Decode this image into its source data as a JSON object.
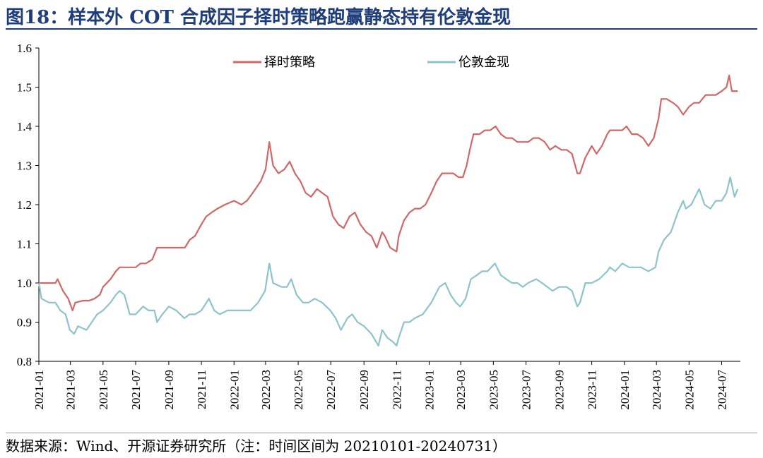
{
  "title": "图18：样本外 COT 合成因子择时策略跑赢静态持有伦敦金现",
  "source": "数据来源：Wind、开源证券研究所（注：时间区间为 20210101-20240731）",
  "chart_data": {
    "type": "line",
    "xlabel": "",
    "ylabel": "",
    "ylim": [
      0.8,
      1.6
    ],
    "yticks": [
      "0.8",
      "0.9",
      "1.0",
      "1.1",
      "1.2",
      "1.3",
      "1.4",
      "1.5",
      "1.6"
    ],
    "xticks": [
      "2021-01",
      "2021-03",
      "2021-05",
      "2021-07",
      "2021-09",
      "2021-11",
      "2022-01",
      "2022-03",
      "2022-05",
      "2022-07",
      "2022-09",
      "2022-11",
      "2023-01",
      "2023-03",
      "2023-05",
      "2023-07",
      "2023-09",
      "2023-11",
      "2024-01",
      "2024-03",
      "2024-05",
      "2024-07"
    ],
    "legend_position": "top-center",
    "grid": false,
    "series": [
      {
        "name": "择时策略",
        "color": "#d06868",
        "points": [
          [
            "2021-01-01",
            1.0
          ],
          [
            "2021-01-20",
            1.0
          ],
          [
            "2021-02-01",
            1.0
          ],
          [
            "2021-02-05",
            1.01
          ],
          [
            "2021-02-15",
            0.98
          ],
          [
            "2021-02-25",
            0.96
          ],
          [
            "2021-03-05",
            0.93
          ],
          [
            "2021-03-10",
            0.95
          ],
          [
            "2021-03-25",
            0.955
          ],
          [
            "2021-04-05",
            0.955
          ],
          [
            "2021-04-15",
            0.96
          ],
          [
            "2021-04-25",
            0.97
          ],
          [
            "2021-05-01",
            0.99
          ],
          [
            "2021-05-15",
            1.01
          ],
          [
            "2021-05-25",
            1.03
          ],
          [
            "2021-06-01",
            1.04
          ],
          [
            "2021-06-15",
            1.04
          ],
          [
            "2021-07-01",
            1.04
          ],
          [
            "2021-07-10",
            1.05
          ],
          [
            "2021-07-20",
            1.05
          ],
          [
            "2021-08-01",
            1.06
          ],
          [
            "2021-08-10",
            1.09
          ],
          [
            "2021-09-01",
            1.09
          ],
          [
            "2021-09-20",
            1.09
          ],
          [
            "2021-10-01",
            1.09
          ],
          [
            "2021-10-10",
            1.11
          ],
          [
            "2021-10-20",
            1.12
          ],
          [
            "2021-11-01",
            1.15
          ],
          [
            "2021-11-10",
            1.17
          ],
          [
            "2021-11-20",
            1.18
          ],
          [
            "2021-12-01",
            1.19
          ],
          [
            "2021-12-15",
            1.2
          ],
          [
            "2022-01-01",
            1.21
          ],
          [
            "2022-01-15",
            1.2
          ],
          [
            "2022-01-25",
            1.21
          ],
          [
            "2022-02-05",
            1.23
          ],
          [
            "2022-02-20",
            1.26
          ],
          [
            "2022-03-01",
            1.29
          ],
          [
            "2022-03-08",
            1.36
          ],
          [
            "2022-03-15",
            1.3
          ],
          [
            "2022-03-25",
            1.28
          ],
          [
            "2022-04-05",
            1.29
          ],
          [
            "2022-04-15",
            1.31
          ],
          [
            "2022-04-25",
            1.28
          ],
          [
            "2022-05-05",
            1.26
          ],
          [
            "2022-05-15",
            1.23
          ],
          [
            "2022-05-25",
            1.22
          ],
          [
            "2022-06-05",
            1.24
          ],
          [
            "2022-06-15",
            1.23
          ],
          [
            "2022-06-25",
            1.22
          ],
          [
            "2022-07-05",
            1.17
          ],
          [
            "2022-07-15",
            1.15
          ],
          [
            "2022-07-25",
            1.14
          ],
          [
            "2022-08-05",
            1.17
          ],
          [
            "2022-08-15",
            1.18
          ],
          [
            "2022-08-25",
            1.15
          ],
          [
            "2022-09-05",
            1.13
          ],
          [
            "2022-09-15",
            1.12
          ],
          [
            "2022-09-25",
            1.09
          ],
          [
            "2022-10-05",
            1.13
          ],
          [
            "2022-10-10",
            1.12
          ],
          [
            "2022-10-20",
            1.09
          ],
          [
            "2022-11-01",
            1.08
          ],
          [
            "2022-11-05",
            1.12
          ],
          [
            "2022-11-15",
            1.16
          ],
          [
            "2022-11-25",
            1.18
          ],
          [
            "2022-12-05",
            1.19
          ],
          [
            "2022-12-15",
            1.19
          ],
          [
            "2022-12-25",
            1.2
          ],
          [
            "2023-01-05",
            1.23
          ],
          [
            "2023-01-15",
            1.26
          ],
          [
            "2023-01-25",
            1.28
          ],
          [
            "2023-02-05",
            1.28
          ],
          [
            "2023-02-15",
            1.28
          ],
          [
            "2023-02-25",
            1.27
          ],
          [
            "2023-03-05",
            1.27
          ],
          [
            "2023-03-12",
            1.3
          ],
          [
            "2023-03-18",
            1.34
          ],
          [
            "2023-03-25",
            1.38
          ],
          [
            "2023-04-05",
            1.38
          ],
          [
            "2023-04-15",
            1.39
          ],
          [
            "2023-04-25",
            1.39
          ],
          [
            "2023-05-05",
            1.4
          ],
          [
            "2023-05-15",
            1.38
          ],
          [
            "2023-05-25",
            1.37
          ],
          [
            "2023-06-05",
            1.37
          ],
          [
            "2023-06-15",
            1.36
          ],
          [
            "2023-06-25",
            1.36
          ],
          [
            "2023-07-05",
            1.36
          ],
          [
            "2023-07-15",
            1.37
          ],
          [
            "2023-07-25",
            1.37
          ],
          [
            "2023-08-05",
            1.36
          ],
          [
            "2023-08-15",
            1.34
          ],
          [
            "2023-08-25",
            1.35
          ],
          [
            "2023-09-05",
            1.34
          ],
          [
            "2023-09-15",
            1.34
          ],
          [
            "2023-09-25",
            1.33
          ],
          [
            "2023-10-05",
            1.28
          ],
          [
            "2023-10-10",
            1.28
          ],
          [
            "2023-10-20",
            1.32
          ],
          [
            "2023-11-01",
            1.35
          ],
          [
            "2023-11-10",
            1.33
          ],
          [
            "2023-11-20",
            1.35
          ],
          [
            "2023-11-30",
            1.38
          ],
          [
            "2023-12-05",
            1.39
          ],
          [
            "2023-12-15",
            1.39
          ],
          [
            "2023-12-28",
            1.39
          ],
          [
            "2024-01-05",
            1.4
          ],
          [
            "2024-01-15",
            1.38
          ],
          [
            "2024-01-25",
            1.38
          ],
          [
            "2024-02-05",
            1.37
          ],
          [
            "2024-02-15",
            1.35
          ],
          [
            "2024-02-25",
            1.37
          ],
          [
            "2024-03-05",
            1.42
          ],
          [
            "2024-03-10",
            1.47
          ],
          [
            "2024-03-20",
            1.47
          ],
          [
            "2024-04-01",
            1.46
          ],
          [
            "2024-04-10",
            1.45
          ],
          [
            "2024-04-20",
            1.43
          ],
          [
            "2024-05-01",
            1.45
          ],
          [
            "2024-05-10",
            1.46
          ],
          [
            "2024-05-20",
            1.46
          ],
          [
            "2024-06-01",
            1.48
          ],
          [
            "2024-06-10",
            1.48
          ],
          [
            "2024-06-20",
            1.48
          ],
          [
            "2024-07-01",
            1.49
          ],
          [
            "2024-07-10",
            1.5
          ],
          [
            "2024-07-15",
            1.53
          ],
          [
            "2024-07-20",
            1.49
          ],
          [
            "2024-07-31",
            1.49
          ]
        ]
      },
      {
        "name": "伦敦金现",
        "color": "#8fc3cc",
        "points": [
          [
            "2021-01-01",
            1.0
          ],
          [
            "2021-01-06",
            0.96
          ],
          [
            "2021-01-20",
            0.95
          ],
          [
            "2021-02-01",
            0.95
          ],
          [
            "2021-02-10",
            0.93
          ],
          [
            "2021-02-20",
            0.92
          ],
          [
            "2021-02-28",
            0.88
          ],
          [
            "2021-03-08",
            0.87
          ],
          [
            "2021-03-15",
            0.89
          ],
          [
            "2021-03-31",
            0.88
          ],
          [
            "2021-04-10",
            0.9
          ],
          [
            "2021-04-20",
            0.92
          ],
          [
            "2021-05-01",
            0.93
          ],
          [
            "2021-05-15",
            0.95
          ],
          [
            "2021-05-25",
            0.97
          ],
          [
            "2021-06-01",
            0.98
          ],
          [
            "2021-06-10",
            0.97
          ],
          [
            "2021-06-20",
            0.92
          ],
          [
            "2021-07-01",
            0.92
          ],
          [
            "2021-07-15",
            0.94
          ],
          [
            "2021-07-25",
            0.93
          ],
          [
            "2021-08-05",
            0.93
          ],
          [
            "2021-08-10",
            0.9
          ],
          [
            "2021-08-20",
            0.92
          ],
          [
            "2021-09-01",
            0.94
          ],
          [
            "2021-09-15",
            0.93
          ],
          [
            "2021-09-30",
            0.91
          ],
          [
            "2021-10-10",
            0.92
          ],
          [
            "2021-10-20",
            0.92
          ],
          [
            "2021-11-01",
            0.93
          ],
          [
            "2021-11-15",
            0.96
          ],
          [
            "2021-11-25",
            0.93
          ],
          [
            "2021-12-05",
            0.92
          ],
          [
            "2021-12-20",
            0.93
          ],
          [
            "2022-01-01",
            0.93
          ],
          [
            "2022-01-20",
            0.93
          ],
          [
            "2022-02-01",
            0.93
          ],
          [
            "2022-02-15",
            0.95
          ],
          [
            "2022-02-28",
            0.98
          ],
          [
            "2022-03-08",
            1.05
          ],
          [
            "2022-03-15",
            1.0
          ],
          [
            "2022-03-31",
            0.99
          ],
          [
            "2022-04-10",
            0.99
          ],
          [
            "2022-04-18",
            1.01
          ],
          [
            "2022-04-28",
            0.97
          ],
          [
            "2022-05-10",
            0.95
          ],
          [
            "2022-05-20",
            0.95
          ],
          [
            "2022-06-01",
            0.96
          ],
          [
            "2022-06-15",
            0.95
          ],
          [
            "2022-06-30",
            0.93
          ],
          [
            "2022-07-10",
            0.91
          ],
          [
            "2022-07-20",
            0.88
          ],
          [
            "2022-08-01",
            0.91
          ],
          [
            "2022-08-10",
            0.92
          ],
          [
            "2022-08-20",
            0.9
          ],
          [
            "2022-09-01",
            0.89
          ],
          [
            "2022-09-15",
            0.87
          ],
          [
            "2022-09-28",
            0.84
          ],
          [
            "2022-10-05",
            0.88
          ],
          [
            "2022-10-15",
            0.86
          ],
          [
            "2022-10-25",
            0.85
          ],
          [
            "2022-11-01",
            0.84
          ],
          [
            "2022-11-05",
            0.86
          ],
          [
            "2022-11-15",
            0.9
          ],
          [
            "2022-11-25",
            0.9
          ],
          [
            "2022-12-05",
            0.91
          ],
          [
            "2022-12-20",
            0.92
          ],
          [
            "2023-01-05",
            0.95
          ],
          [
            "2023-01-20",
            0.99
          ],
          [
            "2023-01-31",
            1.0
          ],
          [
            "2023-02-10",
            0.97
          ],
          [
            "2023-02-20",
            0.95
          ],
          [
            "2023-02-28",
            0.94
          ],
          [
            "2023-03-10",
            0.96
          ],
          [
            "2023-03-20",
            1.01
          ],
          [
            "2023-03-31",
            1.02
          ],
          [
            "2023-04-10",
            1.03
          ],
          [
            "2023-04-20",
            1.03
          ],
          [
            "2023-05-04",
            1.05
          ],
          [
            "2023-05-15",
            1.02
          ],
          [
            "2023-05-25",
            1.01
          ],
          [
            "2023-06-05",
            1.0
          ],
          [
            "2023-06-15",
            1.0
          ],
          [
            "2023-06-25",
            0.99
          ],
          [
            "2023-07-05",
            1.0
          ],
          [
            "2023-07-20",
            1.01
          ],
          [
            "2023-07-31",
            1.0
          ],
          [
            "2023-08-10",
            0.99
          ],
          [
            "2023-08-20",
            0.98
          ],
          [
            "2023-09-01",
            0.99
          ],
          [
            "2023-09-15",
            0.99
          ],
          [
            "2023-09-25",
            0.98
          ],
          [
            "2023-10-05",
            0.94
          ],
          [
            "2023-10-10",
            0.95
          ],
          [
            "2023-10-20",
            1.0
          ],
          [
            "2023-11-01",
            1.0
          ],
          [
            "2023-11-15",
            1.01
          ],
          [
            "2023-11-30",
            1.03
          ],
          [
            "2023-12-05",
            1.04
          ],
          [
            "2023-12-15",
            1.03
          ],
          [
            "2023-12-28",
            1.05
          ],
          [
            "2024-01-10",
            1.04
          ],
          [
            "2024-01-20",
            1.04
          ],
          [
            "2024-02-01",
            1.04
          ],
          [
            "2024-02-15",
            1.03
          ],
          [
            "2024-02-28",
            1.04
          ],
          [
            "2024-03-05",
            1.08
          ],
          [
            "2024-03-15",
            1.11
          ],
          [
            "2024-03-28",
            1.13
          ],
          [
            "2024-04-10",
            1.18
          ],
          [
            "2024-04-20",
            1.21
          ],
          [
            "2024-04-25",
            1.19
          ],
          [
            "2024-05-05",
            1.2
          ],
          [
            "2024-05-20",
            1.24
          ],
          [
            "2024-05-30",
            1.2
          ],
          [
            "2024-06-10",
            1.19
          ],
          [
            "2024-06-20",
            1.21
          ],
          [
            "2024-07-01",
            1.21
          ],
          [
            "2024-07-10",
            1.23
          ],
          [
            "2024-07-17",
            1.27
          ],
          [
            "2024-07-25",
            1.22
          ],
          [
            "2024-07-31",
            1.24
          ]
        ]
      }
    ]
  }
}
